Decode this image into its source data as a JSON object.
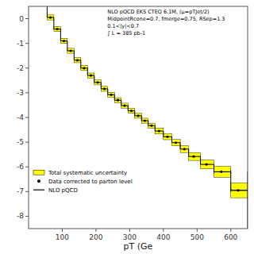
{
  "chart_data": {
    "type": "step",
    "xlabel": "pT (Ge",
    "annotations": [
      "NLO pQCD EKS CTEQ 6.1M, (μ=pTJet/2)",
      "MidpointRcone=0.7, fmerge=0.75, RSep=1.3",
      "0.1<|y|<0.7",
      "∫ L = 385 pb-1"
    ],
    "xlim": [
      0,
      650
    ],
    "ylim": [
      -8.5,
      0.5
    ],
    "xticks": [
      100,
      200,
      300,
      400,
      500,
      600
    ],
    "yticks": [
      0,
      -1,
      -2,
      -3,
      -4,
      -5,
      -6,
      -7,
      -8
    ],
    "legend": "lower left",
    "series": [
      {
        "name": "Total systematic uncertainty",
        "type": "band",
        "color": "#ffff00",
        "bins": [
          55,
          75,
          95,
          115,
          135,
          155,
          175,
          195,
          215,
          235,
          255,
          275,
          295,
          315,
          335,
          355,
          375,
          400,
          425,
          450,
          475,
          510,
          550,
          600,
          650
        ],
        "values": [
          0.05,
          -0.42,
          -0.9,
          -1.3,
          -1.68,
          -2.0,
          -2.3,
          -2.58,
          -2.84,
          -3.08,
          -3.3,
          -3.52,
          -3.73,
          -3.93,
          -4.13,
          -4.33,
          -4.55,
          -4.78,
          -5.02,
          -5.28,
          -5.58,
          -5.9,
          -6.2,
          -6.95
        ],
        "errors": [
          0.1,
          0.1,
          0.1,
          0.1,
          0.1,
          0.1,
          0.1,
          0.1,
          0.1,
          0.1,
          0.1,
          0.1,
          0.1,
          0.1,
          0.1,
          0.1,
          0.12,
          0.12,
          0.13,
          0.14,
          0.16,
          0.18,
          0.22,
          0.3
        ]
      },
      {
        "name": "Data corrected to parton level",
        "type": "scatter",
        "color": "#000000",
        "marker": "circle",
        "x": [
          65,
          85,
          105,
          125,
          145,
          165,
          185,
          205,
          225,
          245,
          265,
          285,
          305,
          325,
          345,
          365,
          387,
          412,
          437,
          462,
          490,
          528,
          572,
          622
        ],
        "values": [
          0.05,
          -0.42,
          -0.9,
          -1.3,
          -1.68,
          -2.0,
          -2.3,
          -2.58,
          -2.84,
          -3.08,
          -3.3,
          -3.52,
          -3.73,
          -3.93,
          -4.13,
          -4.33,
          -4.55,
          -4.78,
          -5.02,
          -5.28,
          -5.58,
          -5.9,
          -6.2,
          -6.95
        ],
        "xerr_low": [
          null,
          null,
          null,
          null,
          null,
          null,
          null,
          null,
          null,
          null,
          null,
          null,
          null,
          null,
          null,
          null,
          null,
          null,
          null,
          null,
          null,
          null,
          22,
          22
        ],
        "xerr_high": [
          null,
          null,
          null,
          null,
          null,
          null,
          null,
          null,
          null,
          null,
          null,
          null,
          null,
          null,
          null,
          null,
          null,
          null,
          null,
          null,
          null,
          null,
          28,
          28
        ]
      },
      {
        "name": "NLO pQCD",
        "type": "step",
        "color": "#000000",
        "bins": [
          55,
          75,
          95,
          115,
          135,
          155,
          175,
          195,
          215,
          235,
          255,
          275,
          295,
          315,
          335,
          355,
          375,
          400,
          425,
          450,
          475,
          510,
          550,
          600,
          650
        ],
        "values": [
          0.05,
          -0.42,
          -0.9,
          -1.3,
          -1.68,
          -2.0,
          -2.3,
          -2.58,
          -2.84,
          -3.08,
          -3.3,
          -3.52,
          -3.73,
          -3.93,
          -4.13,
          -4.33,
          -4.55,
          -4.78,
          -5.02,
          -5.28,
          -5.58,
          -5.9,
          -6.2,
          -6.95
        ]
      }
    ]
  }
}
